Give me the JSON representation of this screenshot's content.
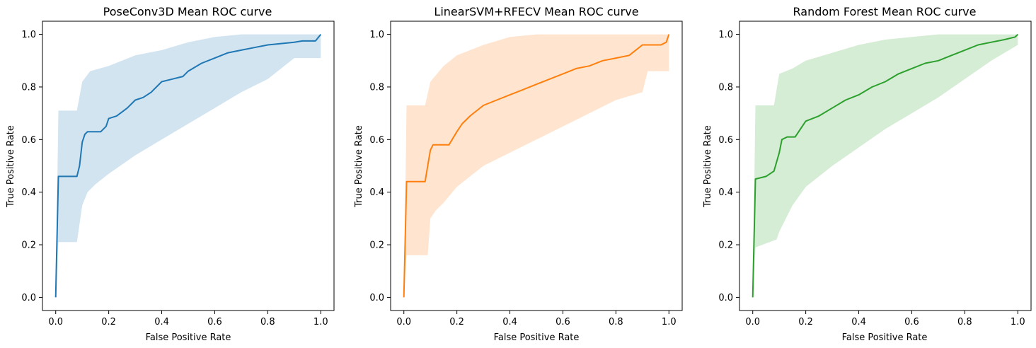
{
  "chart_data": [
    {
      "type": "line",
      "title": "PoseConv3D Mean ROC curve",
      "xlabel": "False Positive Rate",
      "ylabel": "True Positive Rate",
      "xlim": [
        -0.05,
        1.05
      ],
      "ylim": [
        -0.05,
        1.05
      ],
      "xticks": [
        0.0,
        0.2,
        0.4,
        0.6,
        0.8,
        1.0
      ],
      "yticks": [
        0.0,
        0.2,
        0.4,
        0.6,
        0.8,
        1.0
      ],
      "tick_labels": [
        "0.0",
        "0.2",
        "0.4",
        "0.6",
        "0.8",
        "1.0"
      ],
      "line_color": "#1f77b4",
      "band_color": "#1f77b4",
      "grid": false,
      "series": [
        {
          "name": "mean",
          "x": [
            0.0,
            0.01,
            0.08,
            0.09,
            0.1,
            0.11,
            0.12,
            0.17,
            0.19,
            0.2,
            0.23,
            0.27,
            0.3,
            0.33,
            0.36,
            0.4,
            0.44,
            0.48,
            0.5,
            0.55,
            0.6,
            0.65,
            0.7,
            0.75,
            0.8,
            0.85,
            0.9,
            0.93,
            0.95,
            0.98,
            1.0
          ],
          "y": [
            0.0,
            0.46,
            0.46,
            0.5,
            0.59,
            0.62,
            0.63,
            0.63,
            0.65,
            0.68,
            0.69,
            0.72,
            0.75,
            0.76,
            0.78,
            0.82,
            0.83,
            0.84,
            0.86,
            0.89,
            0.91,
            0.93,
            0.94,
            0.95,
            0.96,
            0.965,
            0.97,
            0.975,
            0.975,
            0.975,
            1.0
          ]
        },
        {
          "name": "upper",
          "x": [
            0.0,
            0.01,
            0.08,
            0.1,
            0.13,
            0.2,
            0.3,
            0.4,
            0.5,
            0.6,
            0.7,
            0.8,
            0.9,
            1.0
          ],
          "y": [
            0.0,
            0.71,
            0.71,
            0.82,
            0.86,
            0.88,
            0.92,
            0.94,
            0.97,
            0.99,
            1.0,
            1.0,
            1.0,
            1.0
          ]
        },
        {
          "name": "lower",
          "x": [
            0.0,
            0.01,
            0.08,
            0.1,
            0.12,
            0.15,
            0.2,
            0.3,
            0.4,
            0.5,
            0.6,
            0.7,
            0.8,
            0.9,
            1.0
          ],
          "y": [
            0.0,
            0.21,
            0.21,
            0.35,
            0.4,
            0.43,
            0.47,
            0.54,
            0.6,
            0.66,
            0.72,
            0.78,
            0.83,
            0.91,
            0.91
          ]
        }
      ]
    },
    {
      "type": "line",
      "title": "LinearSVM+RFECV Mean ROC curve",
      "xlabel": "False Positive Rate",
      "ylabel": "True Positive Rate",
      "xlim": [
        -0.05,
        1.05
      ],
      "ylim": [
        -0.05,
        1.05
      ],
      "xticks": [
        0.0,
        0.2,
        0.4,
        0.6,
        0.8,
        1.0
      ],
      "yticks": [
        0.0,
        0.2,
        0.4,
        0.6,
        0.8,
        1.0
      ],
      "tick_labels": [
        "0.0",
        "0.2",
        "0.4",
        "0.6",
        "0.8",
        "1.0"
      ],
      "line_color": "#ff7f0e",
      "band_color": "#ff7f0e",
      "grid": false,
      "series": [
        {
          "name": "mean",
          "x": [
            0.0,
            0.01,
            0.08,
            0.09,
            0.1,
            0.11,
            0.17,
            0.2,
            0.22,
            0.25,
            0.3,
            0.35,
            0.4,
            0.45,
            0.5,
            0.55,
            0.6,
            0.65,
            0.7,
            0.75,
            0.8,
            0.85,
            0.9,
            0.93,
            0.97,
            0.99,
            1.0
          ],
          "y": [
            0.0,
            0.44,
            0.44,
            0.5,
            0.56,
            0.58,
            0.58,
            0.63,
            0.66,
            0.69,
            0.73,
            0.75,
            0.77,
            0.79,
            0.81,
            0.83,
            0.85,
            0.87,
            0.88,
            0.9,
            0.91,
            0.92,
            0.96,
            0.96,
            0.96,
            0.97,
            1.0
          ]
        },
        {
          "name": "upper",
          "x": [
            0.0,
            0.01,
            0.08,
            0.1,
            0.15,
            0.2,
            0.3,
            0.4,
            0.5,
            0.6,
            0.7,
            0.8,
            0.9,
            1.0
          ],
          "y": [
            0.0,
            0.73,
            0.73,
            0.82,
            0.88,
            0.92,
            0.96,
            0.99,
            1.0,
            1.0,
            1.0,
            1.0,
            1.0,
            1.0
          ]
        },
        {
          "name": "lower",
          "x": [
            0.0,
            0.01,
            0.09,
            0.1,
            0.12,
            0.15,
            0.2,
            0.3,
            0.4,
            0.5,
            0.6,
            0.7,
            0.8,
            0.9,
            0.92,
            1.0
          ],
          "y": [
            0.0,
            0.16,
            0.16,
            0.3,
            0.33,
            0.36,
            0.42,
            0.5,
            0.55,
            0.6,
            0.65,
            0.7,
            0.75,
            0.78,
            0.86,
            0.86
          ]
        }
      ]
    },
    {
      "type": "line",
      "title": "Random Forest Mean ROC curve",
      "xlabel": "False Positive Rate",
      "ylabel": "True Positive Rate",
      "xlim": [
        -0.05,
        1.05
      ],
      "ylim": [
        -0.05,
        1.05
      ],
      "xticks": [
        0.0,
        0.2,
        0.4,
        0.6,
        0.8,
        1.0
      ],
      "yticks": [
        0.0,
        0.2,
        0.4,
        0.6,
        0.8,
        1.0
      ],
      "tick_labels": [
        "0.0",
        "0.2",
        "0.4",
        "0.6",
        "0.8",
        "1.0"
      ],
      "line_color": "#2ca02c",
      "band_color": "#2ca02c",
      "grid": false,
      "series": [
        {
          "name": "mean",
          "x": [
            0.0,
            0.01,
            0.05,
            0.08,
            0.1,
            0.11,
            0.13,
            0.16,
            0.18,
            0.2,
            0.25,
            0.3,
            0.35,
            0.4,
            0.45,
            0.5,
            0.55,
            0.6,
            0.65,
            0.7,
            0.75,
            0.8,
            0.85,
            0.9,
            0.95,
            0.99,
            1.0
          ],
          "y": [
            0.0,
            0.45,
            0.46,
            0.48,
            0.55,
            0.6,
            0.61,
            0.61,
            0.64,
            0.67,
            0.69,
            0.72,
            0.75,
            0.77,
            0.8,
            0.82,
            0.85,
            0.87,
            0.89,
            0.9,
            0.92,
            0.94,
            0.96,
            0.97,
            0.98,
            0.99,
            1.0
          ]
        },
        {
          "name": "upper",
          "x": [
            0.0,
            0.01,
            0.08,
            0.1,
            0.15,
            0.2,
            0.3,
            0.4,
            0.5,
            0.6,
            0.7,
            0.8,
            0.9,
            1.0
          ],
          "y": [
            0.0,
            0.73,
            0.73,
            0.85,
            0.87,
            0.9,
            0.93,
            0.96,
            0.98,
            0.99,
            1.0,
            1.0,
            1.0,
            1.0
          ]
        },
        {
          "name": "lower",
          "x": [
            0.0,
            0.01,
            0.09,
            0.1,
            0.12,
            0.15,
            0.2,
            0.3,
            0.4,
            0.5,
            0.6,
            0.7,
            0.8,
            0.9,
            1.0
          ],
          "y": [
            0.0,
            0.19,
            0.22,
            0.25,
            0.29,
            0.35,
            0.42,
            0.5,
            0.57,
            0.64,
            0.7,
            0.76,
            0.83,
            0.9,
            0.96
          ]
        }
      ]
    }
  ]
}
